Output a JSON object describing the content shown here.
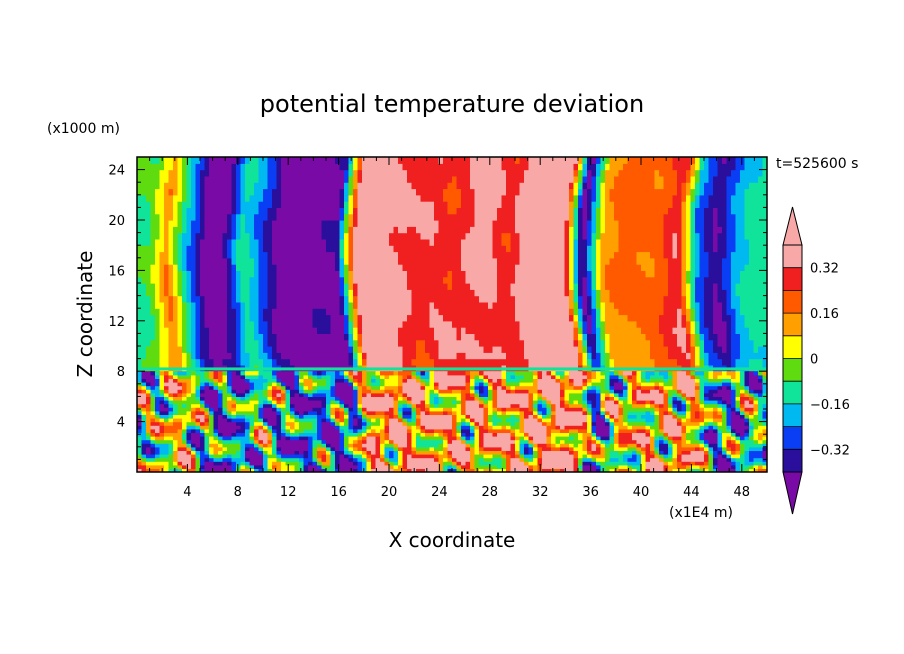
{
  "chart_data": {
    "type": "heatmap",
    "title": "potential temperature deviation",
    "xlabel": "X coordinate",
    "ylabel": "Z coordinate",
    "x_units": "(x1E4 m)",
    "y_units": "(x1000 m)",
    "time_label": "t=525600 s",
    "xlim": [
      0,
      50
    ],
    "ylim": [
      0,
      25
    ],
    "x_ticks": [
      4,
      8,
      12,
      16,
      20,
      24,
      28,
      32,
      36,
      40,
      44,
      48
    ],
    "x_tick_labels": [
      "4",
      "8",
      "12",
      "16",
      "20",
      "24",
      "28",
      "32",
      "36",
      "40",
      "44",
      "48"
    ],
    "y_ticks": [
      4,
      8,
      12,
      16,
      20,
      24
    ],
    "y_tick_labels": [
      "4",
      "8",
      "12",
      "16",
      "20",
      "24"
    ],
    "colorbar": {
      "levels": [
        -0.4,
        -0.32,
        -0.24,
        -0.16,
        -0.08,
        0,
        0.08,
        0.16,
        0.24,
        0.32,
        0.4
      ],
      "tick_values": [
        0.32,
        0.16,
        0,
        -0.16,
        -0.32
      ],
      "tick_labels": [
        "0.32",
        "0.16",
        "0",
        "−0.16",
        "−0.32"
      ],
      "colors": [
        "#7a0aa6",
        "#2a0f9c",
        "#0a3ef5",
        "#00b9f0",
        "#10e49a",
        "#5fdc10",
        "#ffff00",
        "#ffa000",
        "#ff5a00",
        "#f02020",
        "#f9a8a8",
        "#f9a8a8"
      ],
      "extend": "both"
    },
    "upper_layer_profile": {
      "x": [
        0.5,
        2,
        3.5,
        5,
        6.5,
        8,
        9.5,
        11,
        12.5,
        14,
        15.5,
        17,
        18.5,
        20,
        21.5,
        23,
        24.5,
        26,
        27.5,
        29,
        30.5,
        32,
        33.5,
        35,
        36.5,
        38,
        39.5,
        41,
        42.5,
        44,
        45.5,
        47,
        48.5,
        49.5
      ],
      "values": [
        -0.1,
        -0.05,
        0.15,
        -0.2,
        -0.45,
        -0.42,
        -0.12,
        -0.3,
        -0.45,
        -0.45,
        -0.45,
        -0.44,
        0.38,
        0.42,
        0.32,
        0.28,
        0.34,
        0.26,
        0.3,
        0.36,
        0.28,
        0.42,
        0.45,
        0.44,
        -0.45,
        0.1,
        0.16,
        0.2,
        0.22,
        0.3,
        -0.25,
        -0.4,
        -0.2,
        -0.15
      ],
      "z_range": [
        8,
        25
      ]
    },
    "lower_layer": {
      "z_range": [
        0,
        8
      ],
      "pattern": "turbulent"
    }
  }
}
